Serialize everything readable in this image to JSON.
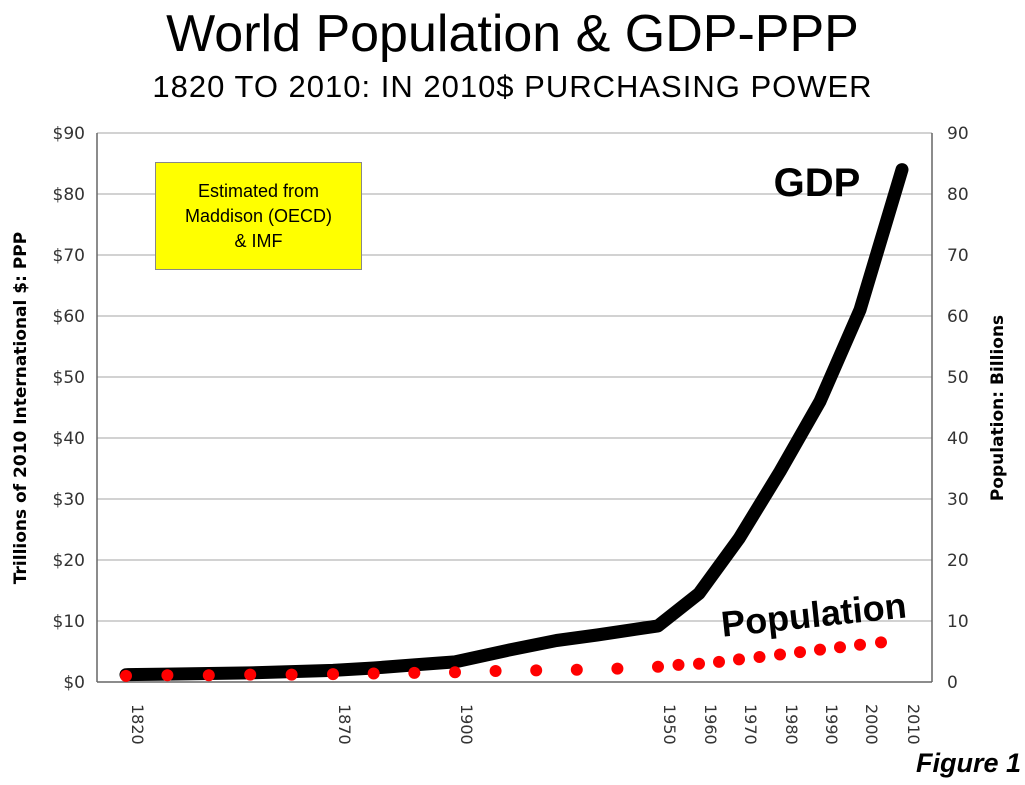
{
  "title": "World Population & GDP-PPP",
  "subtitle": "1820 TO 2010: IN 2010$ PURCHASING POWER",
  "note": [
    "Estimated from",
    "Maddison (OECD)",
    "& IMF"
  ],
  "figure_label": "Figure 1",
  "chart_data": {
    "type": "line",
    "xlabel": "",
    "ylabel_left": "Trillions of 2010 International $: PPP",
    "ylabel_right": "Population: Billions",
    "x_ticks": [
      "1820",
      "1870",
      "1900",
      "1950",
      "1960",
      "1970",
      "1980",
      "1990",
      "2000",
      "2010"
    ],
    "y_left_ticks": [
      "$0",
      "$10",
      "$20",
      "$30",
      "$40",
      "$50",
      "$60",
      "$70",
      "$80",
      "$90"
    ],
    "y_right_ticks": [
      "0",
      "10",
      "20",
      "30",
      "40",
      "50",
      "60",
      "70",
      "80",
      "90"
    ],
    "ylim_left": [
      0,
      90
    ],
    "ylim_right": [
      0,
      90
    ],
    "grid": true,
    "series": [
      {
        "name": "GDP",
        "axis": "left",
        "style": "line",
        "color": "#000000",
        "x": [
          1820,
          1830,
          1840,
          1850,
          1860,
          1870,
          1880,
          1890,
          1900,
          1913,
          1925,
          1935,
          1950,
          1960,
          1970,
          1980,
          1990,
          2000,
          2010
        ],
        "y": [
          1.2,
          1.3,
          1.4,
          1.5,
          1.7,
          1.9,
          2.3,
          2.8,
          3.3,
          5.2,
          6.8,
          7.7,
          9.2,
          14.5,
          23.5,
          34.5,
          46,
          61,
          84
        ]
      },
      {
        "name": "Population",
        "axis": "right",
        "style": "dots",
        "color": "#ff0000",
        "x": [
          1820,
          1830,
          1840,
          1850,
          1860,
          1870,
          1880,
          1890,
          1900,
          1910,
          1920,
          1930,
          1940,
          1950,
          1955,
          1960,
          1965,
          1970,
          1975,
          1980,
          1985,
          1990,
          1995,
          2000,
          2005
        ],
        "y": [
          1.0,
          1.1,
          1.1,
          1.2,
          1.2,
          1.3,
          1.4,
          1.5,
          1.6,
          1.8,
          1.9,
          2.0,
          2.2,
          2.5,
          2.8,
          3.0,
          3.3,
          3.7,
          4.1,
          4.5,
          4.9,
          5.3,
          5.7,
          6.1,
          6.5
        ]
      }
    ]
  }
}
